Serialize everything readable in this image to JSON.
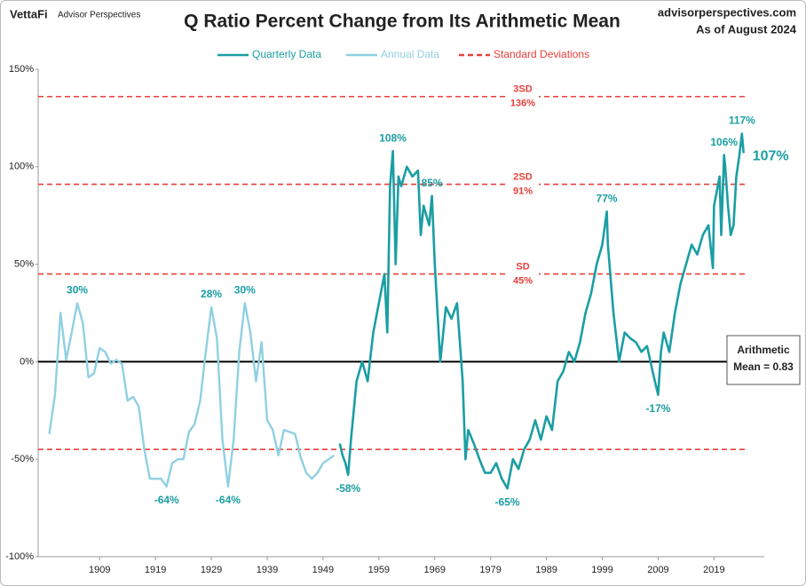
{
  "chart_data": {
    "type": "line",
    "title": "Q Ratio Percent Change from Its Arithmetic Mean",
    "brand": "VettaFi",
    "brand_sub": "Advisor Perspectives",
    "source": "advisorperspectives.com",
    "date_note": "As of August 2024",
    "xlim": [
      1898,
      2028
    ],
    "xticks": [
      1909,
      1919,
      1929,
      1939,
      1949,
      1959,
      1969,
      1979,
      1989,
      1999,
      2009,
      2019
    ],
    "ylim": [
      -100,
      150
    ],
    "yticks": [
      {
        "value": -100,
        "label": "-100%"
      },
      {
        "value": -50,
        "label": "-50%"
      },
      {
        "value": 0,
        "label": "0%"
      },
      {
        "value": 50,
        "label": "50%"
      },
      {
        "value": 100,
        "label": "100%"
      },
      {
        "value": 150,
        "label": "150%"
      }
    ],
    "series": [
      {
        "name": "Quarterly Data",
        "color": "#1b9ea3",
        "x": [
          1952,
          1952.5,
          1953,
          1953.5,
          1954,
          1955,
          1956,
          1957,
          1958,
          1959,
          1960,
          1960.5,
          1961,
          1961.5,
          1962,
          1962.5,
          1963,
          1964,
          1965,
          1966,
          1966.5,
          1967,
          1968,
          1968.5,
          1969,
          1970,
          1971,
          1972,
          1973,
          1974,
          1974.5,
          1975,
          1976,
          1977,
          1978,
          1979,
          1980,
          1981,
          1982,
          1983,
          1984,
          1985,
          1986,
          1987,
          1988,
          1989,
          1990,
          1991,
          1992,
          1993,
          1994,
          1995,
          1996,
          1997,
          1998,
          1999,
          1999.8,
          2000,
          2001,
          2002,
          2003,
          2004,
          2005,
          2006,
          2007,
          2008,
          2009,
          2009.5,
          2010,
          2011,
          2012,
          2013,
          2014,
          2015,
          2016,
          2017,
          2018,
          2018.8,
          2019,
          2020,
          2020.3,
          2020.8,
          2021,
          2021.5,
          2022,
          2022.5,
          2023,
          2023.5,
          2024,
          2024.3
        ],
        "values": [
          -42,
          -48,
          -52,
          -58,
          -40,
          -10,
          0,
          -10,
          15,
          30,
          45,
          15,
          90,
          108,
          50,
          95,
          90,
          100,
          95,
          98,
          65,
          80,
          70,
          85,
          50,
          0,
          28,
          22,
          30,
          -10,
          -50,
          -35,
          -42,
          -50,
          -57,
          -57,
          -52,
          -60,
          -65,
          -50,
          -55,
          -45,
          -40,
          -30,
          -40,
          -28,
          -35,
          -10,
          -5,
          5,
          0,
          10,
          25,
          35,
          50,
          60,
          77,
          60,
          25,
          0,
          15,
          12,
          10,
          5,
          8,
          -5,
          -17,
          5,
          15,
          5,
          25,
          40,
          50,
          60,
          55,
          65,
          70,
          48,
          80,
          95,
          65,
          106,
          100,
          80,
          65,
          70,
          95,
          105,
          117,
          107
        ]
      },
      {
        "name": "Annual Data",
        "color": "#8fd0e2",
        "x": [
          1900,
          1901,
          1902,
          1903,
          1904,
          1905,
          1906,
          1907,
          1908,
          1909,
          1910,
          1911,
          1912,
          1913,
          1914,
          1915,
          1916,
          1917,
          1918,
          1919,
          1920,
          1921,
          1922,
          1923,
          1924,
          1925,
          1926,
          1927,
          1928,
          1929,
          1930,
          1931,
          1932,
          1933,
          1934,
          1935,
          1936,
          1937,
          1938,
          1939,
          1940,
          1941,
          1942,
          1943,
          1944,
          1945,
          1946,
          1947,
          1948,
          1949,
          1950,
          1951
        ],
        "values": [
          -37,
          -17,
          25,
          1,
          15,
          30,
          20,
          -8,
          -6,
          7,
          5,
          -1,
          1,
          -1,
          -20,
          -18,
          -23,
          -45,
          -60,
          -60,
          -60,
          -64,
          -52,
          -50,
          -50,
          -36,
          -32,
          -20,
          5,
          28,
          12,
          -40,
          -64,
          -40,
          5,
          30,
          15,
          -10,
          10,
          -30,
          -35,
          -48,
          -35,
          -36,
          -37,
          -49,
          -57,
          -60,
          -57,
          -52,
          -50,
          -48
        ]
      }
    ],
    "reference_lines_legend": "Standard Deviations",
    "reference_lines_color": "#e8403b",
    "reference_lines": [
      {
        "value": 136,
        "name": "3SD",
        "label": "136%"
      },
      {
        "value": 91,
        "name": "2SD",
        "label": "91%"
      },
      {
        "value": 45,
        "name": "SD",
        "label": "45%"
      },
      {
        "value": -45
      }
    ],
    "annotations": [
      {
        "text": "30%",
        "x": 1905,
        "y": 30
      },
      {
        "text": "-64%",
        "x": 1921,
        "y": -64
      },
      {
        "text": "28%",
        "x": 1929,
        "y": 28
      },
      {
        "text": "-64%",
        "x": 1932,
        "y": -64
      },
      {
        "text": "30%",
        "x": 1935,
        "y": 30
      },
      {
        "text": "-58%",
        "x": 1953.5,
        "y": -58
      },
      {
        "text": "108%",
        "x": 1961.5,
        "y": 108
      },
      {
        "text": "85%",
        "x": 1968.5,
        "y": 85
      },
      {
        "text": "-65%",
        "x": 1982,
        "y": -65
      },
      {
        "text": "77%",
        "x": 1999.8,
        "y": 77
      },
      {
        "text": "-17%",
        "x": 2009,
        "y": -17
      },
      {
        "text": "106%",
        "x": 2020.8,
        "y": 106
      },
      {
        "text": "117%",
        "x": 2024,
        "y": 117
      }
    ],
    "latest_label": {
      "text": "107%",
      "x": 2024.3,
      "y": 107
    },
    "mean_box": [
      "Arithmetic",
      "Mean = 0.83"
    ]
  }
}
